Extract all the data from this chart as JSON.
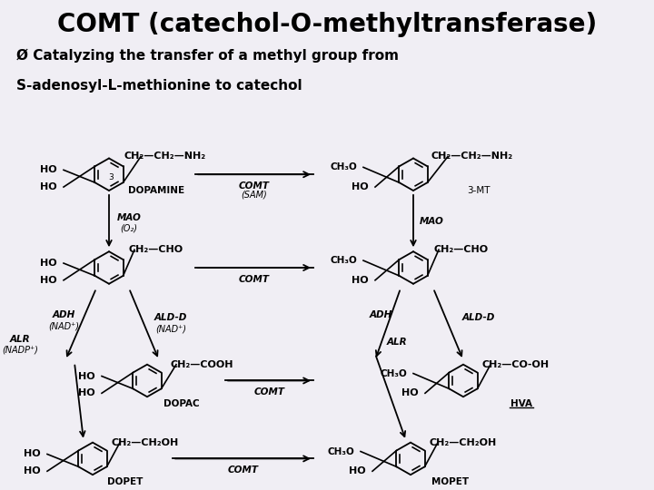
{
  "title": "COMT (catechol-O-methyltransferase)",
  "subtitle1": "Ø Catalyzing the transfer of a methyl group from",
  "subtitle2": "S-adenosyl-L-methionine to catechol",
  "header_color": "#d4f0d4",
  "body_color": "#f0eef4",
  "fig_width": 7.2,
  "fig_height": 5.4,
  "dpi": 100
}
